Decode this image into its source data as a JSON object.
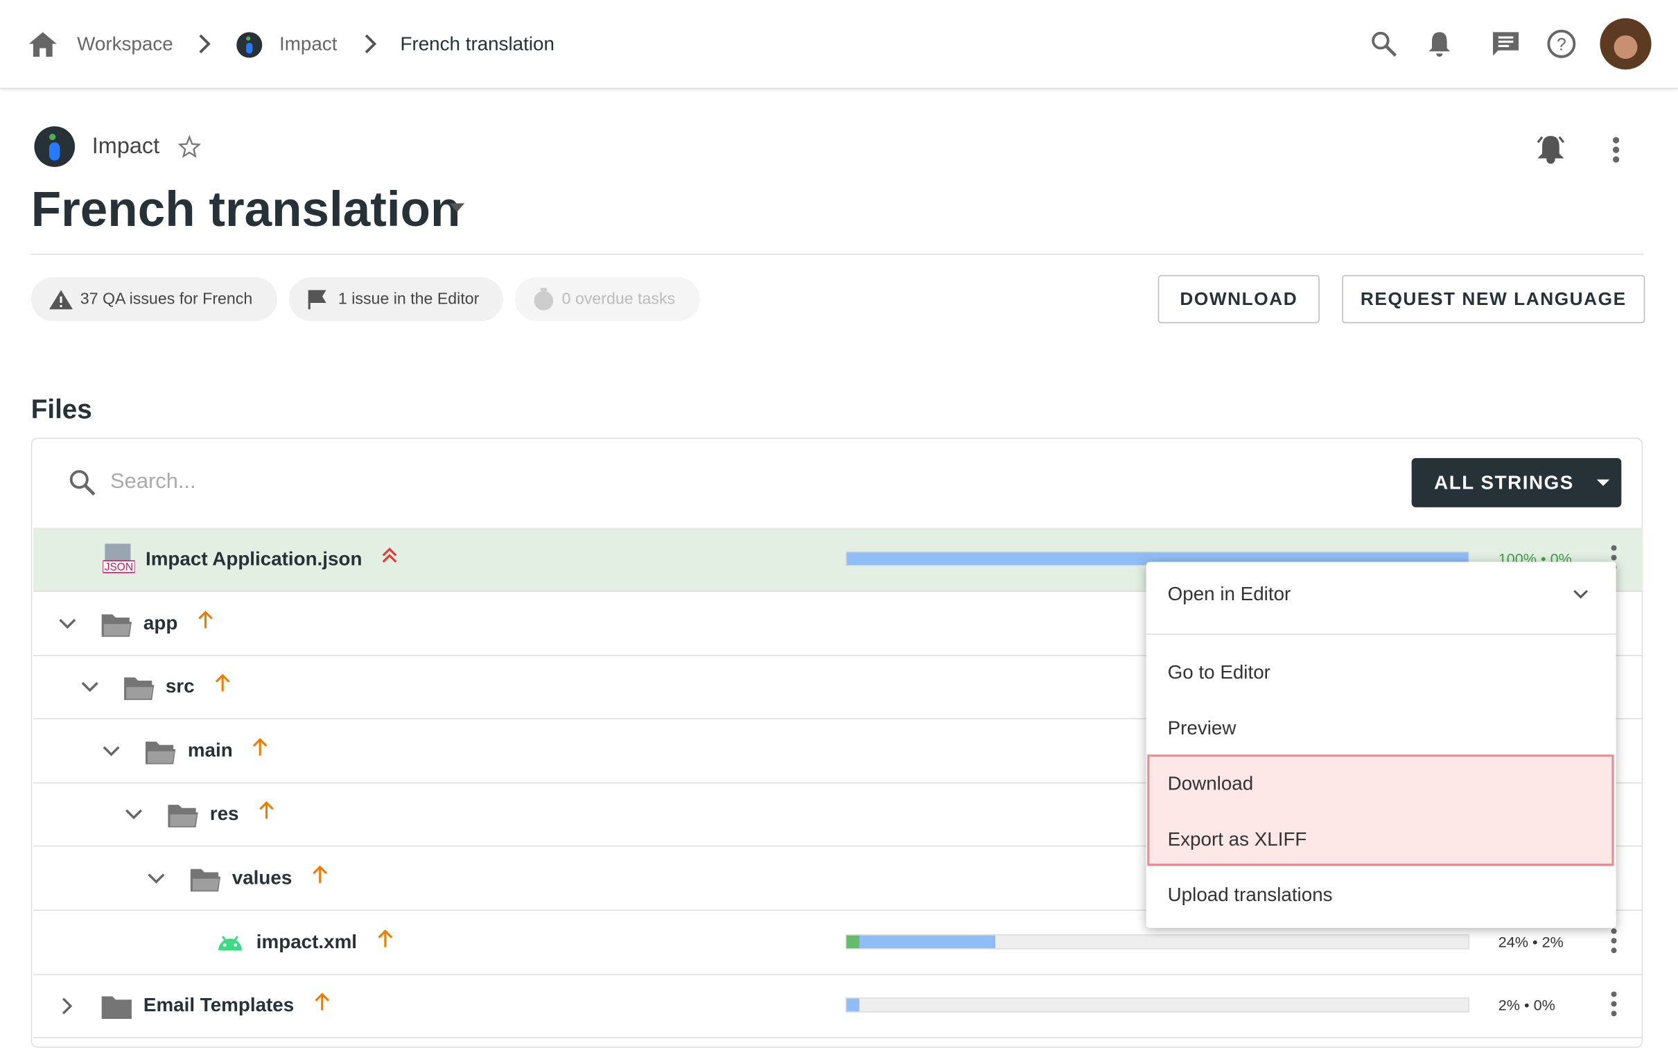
{
  "breadcrumb": [
    "Workspace",
    "Impact",
    "French translation"
  ],
  "project": "Impact",
  "title": "French translation",
  "chips": [
    "37 QA issues for French",
    "1 issue in the Editor",
    "0 overdue tasks"
  ],
  "buttons": [
    "DOWNLOAD",
    "REQUEST NEW LANGUAGE"
  ],
  "files": {
    "heading": "Files",
    "search_placeholder": "Search...",
    "filter": "ALL STRINGS",
    "rows": [
      {
        "name": "Impact Application.json",
        "kind": "json",
        "level": 0,
        "translated": 100,
        "approved": 0,
        "progress_label": "100% • 0%"
      },
      {
        "name": "app",
        "kind": "folder-open",
        "level": 0
      },
      {
        "name": "src",
        "kind": "folder-open",
        "level": 1
      },
      {
        "name": "main",
        "kind": "folder-open",
        "level": 2
      },
      {
        "name": "res",
        "kind": "folder-open",
        "level": 3
      },
      {
        "name": "values",
        "kind": "folder-open",
        "level": 4
      },
      {
        "name": "impact.xml",
        "kind": "android",
        "level": 5,
        "translated": 24,
        "approved": 2,
        "progress_label": "24% • 2%"
      },
      {
        "name": "Email Templates",
        "kind": "folder-closed",
        "level": 0,
        "translated": 2,
        "approved": 0,
        "progress_label": "2% • 0%"
      }
    ]
  },
  "menu": {
    "header": "Open in Editor",
    "items": [
      "Go to Editor",
      "Preview",
      "Download",
      "Export as XLIFF",
      "Upload translations"
    ]
  }
}
